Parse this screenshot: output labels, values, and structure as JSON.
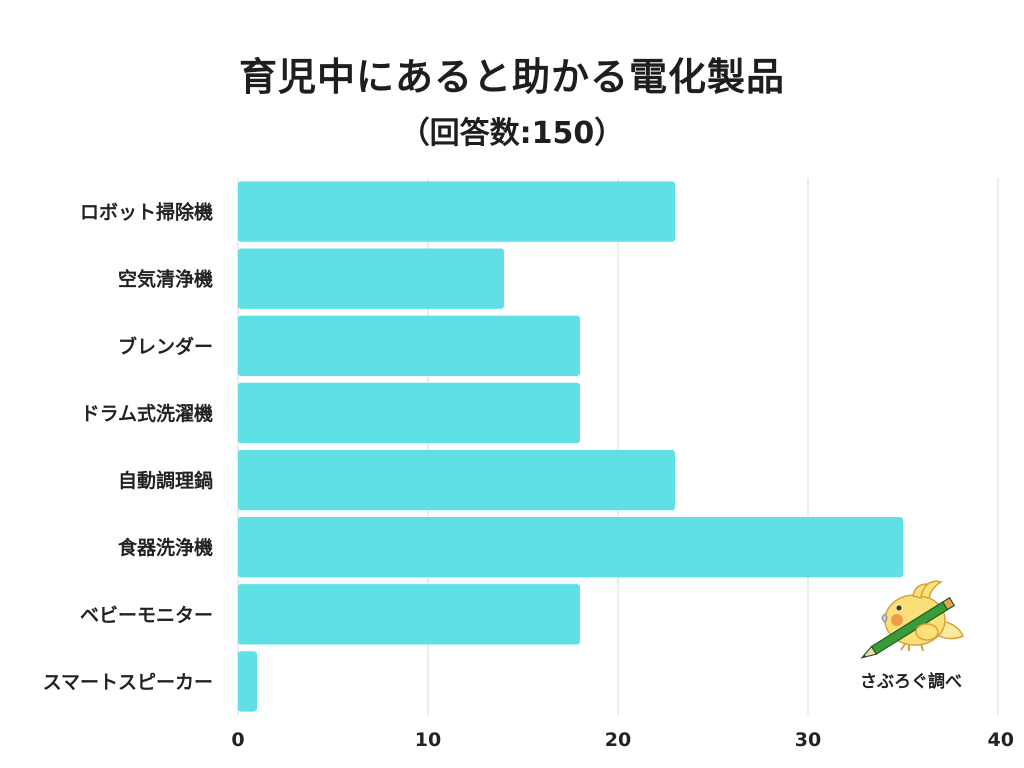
{
  "chart_data": {
    "type": "bar",
    "orientation": "horizontal",
    "title": "育児中にあると助かる電化製品",
    "subtitle": "（回答数:150）",
    "categories": [
      "ロボット掃除機",
      "空気清浄機",
      "ブレンダー",
      "ドラム式洗濯機",
      "自動調理鍋",
      "食器洗浄機",
      "ベビーモニター",
      "スマートスピーカー"
    ],
    "values": [
      23,
      14,
      18,
      18,
      23,
      35,
      18,
      1
    ],
    "xlim": [
      0,
      40
    ],
    "xticks": [
      0,
      10,
      20,
      30,
      40
    ],
    "grid": true,
    "bar_color": "#5ee0e5",
    "credit": "さぶろぐ調べ"
  }
}
